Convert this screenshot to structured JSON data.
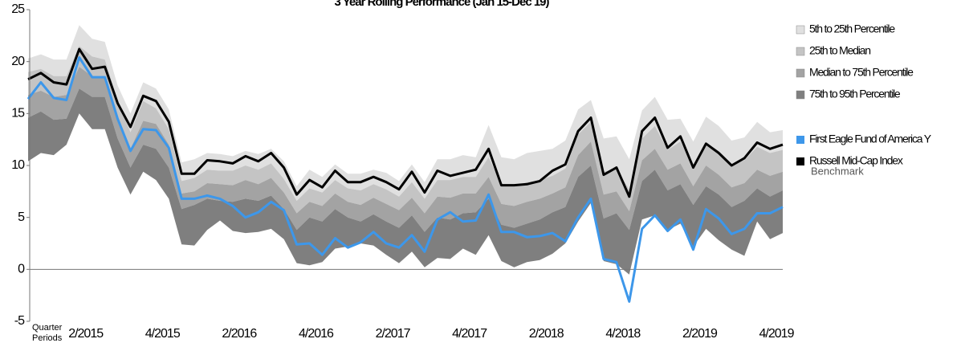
{
  "chart_data": {
    "type": "percentile_band",
    "title": "3 Year Rolling Performance (Jan 15-Dec 19)",
    "x_axis_label": [
      "Quarter",
      "Periods"
    ],
    "categories": [
      null,
      null,
      null,
      null,
      null,
      "2/2015",
      null,
      null,
      null,
      null,
      null,
      "4/2015",
      null,
      null,
      null,
      null,
      null,
      "2/2016",
      null,
      null,
      null,
      null,
      null,
      "4/2016",
      null,
      null,
      null,
      null,
      null,
      "2/2017",
      null,
      null,
      null,
      null,
      null,
      "4/2017",
      null,
      null,
      null,
      null,
      null,
      "2/2018",
      null,
      null,
      null,
      null,
      null,
      "4/2018",
      null,
      null,
      null,
      null,
      null,
      "2/2019",
      null,
      null,
      null,
      null,
      null,
      "4/2019"
    ],
    "ylim": [
      -5,
      25
    ],
    "yticks": [
      -5,
      0,
      5,
      10,
      15,
      20,
      25
    ],
    "bands": [
      {
        "name": "5th to 25th Percentile",
        "color": "#e0e0e0",
        "values": [
          20.3,
          20.7,
          20.2,
          20.2,
          23.5,
          22.2,
          21.9,
          17.7,
          15.0,
          18.0,
          17.4,
          15.4,
          10.3,
          10.6,
          11.2,
          11.1,
          10.9,
          11.4,
          11.1,
          11.6,
          10.4,
          8.0,
          9.6,
          8.9,
          10.1,
          9.2,
          9.2,
          9.6,
          9.3,
          8.5,
          10.1,
          8.4,
          10.6,
          10.6,
          11.0,
          10.8,
          13.9,
          10.8,
          10.6,
          11.2,
          11.4,
          11.6,
          12.4,
          15.4,
          16.3,
          12.6,
          12.8,
          10.6,
          15.3,
          16.6,
          14.4,
          14.5,
          12.3,
          14.7,
          13.8,
          12.4,
          12.7,
          14.2,
          13.2,
          13.4
        ]
      },
      {
        "name": "25th to Median",
        "color": "#c4c4c4",
        "values": [
          19.0,
          19.3,
          18.6,
          18.6,
          21.5,
          20.5,
          20.2,
          16.3,
          13.2,
          16.2,
          15.5,
          13.5,
          8.5,
          8.8,
          9.6,
          9.5,
          9.5,
          10.0,
          9.6,
          10.2,
          8.7,
          6.6,
          7.8,
          7.4,
          8.6,
          7.8,
          7.6,
          8.2,
          7.7,
          7.0,
          8.4,
          6.8,
          8.6,
          8.6,
          8.9,
          8.9,
          10.8,
          8.2,
          8.0,
          8.4,
          8.6,
          9.0,
          9.7,
          13.0,
          14.2,
          9.4,
          9.7,
          7.7,
          12.6,
          13.8,
          11.5,
          12.3,
          10.0,
          12.2,
          11.4,
          10.1,
          10.5,
          11.8,
          11.2,
          11.5
        ]
      },
      {
        "name": "Median to 75th Percentile",
        "color": "#a3a3a3",
        "values": [
          16.8,
          17.2,
          16.6,
          16.8,
          19.5,
          18.6,
          18.4,
          14.6,
          11.6,
          14.3,
          14.0,
          12.0,
          7.3,
          7.5,
          8.3,
          8.2,
          8.1,
          8.6,
          8.2,
          8.8,
          7.4,
          5.4,
          6.5,
          6.1,
          7.3,
          6.5,
          6.2,
          6.9,
          6.3,
          5.7,
          6.9,
          5.4,
          7.0,
          6.9,
          7.3,
          7.3,
          8.9,
          6.3,
          6.1,
          6.5,
          6.8,
          7.3,
          7.9,
          11.0,
          12.3,
          7.2,
          7.5,
          5.6,
          10.5,
          11.6,
          9.6,
          10.2,
          8.0,
          10.0,
          9.1,
          7.9,
          8.3,
          9.6,
          9.0,
          9.4
        ]
      },
      {
        "name": "75th to 95th Percentile",
        "color": "#7f7f7f",
        "values": [
          14.6,
          15.2,
          14.4,
          14.5,
          17.4,
          16.6,
          16.6,
          12.6,
          9.8,
          12.0,
          11.6,
          9.8,
          5.8,
          6.2,
          6.8,
          6.6,
          6.5,
          6.8,
          6.6,
          7.1,
          5.8,
          3.8,
          5.0,
          4.6,
          5.8,
          5.0,
          4.6,
          5.3,
          4.6,
          4.0,
          5.2,
          3.6,
          5.0,
          4.8,
          5.4,
          5.5,
          6.8,
          4.3,
          4.0,
          4.4,
          4.8,
          5.5,
          6.0,
          8.9,
          10.0,
          4.9,
          5.4,
          3.8,
          8.5,
          9.6,
          7.6,
          8.2,
          6.2,
          8.0,
          7.2,
          6.0,
          6.6,
          7.8,
          7.0,
          7.6
        ],
        "low": [
          10.4,
          11.2,
          11.0,
          12.0,
          15.0,
          13.5,
          13.5,
          9.8,
          7.2,
          9.4,
          8.6,
          6.8,
          2.4,
          2.3,
          3.8,
          4.7,
          3.7,
          3.5,
          3.6,
          3.9,
          2.9,
          0.6,
          0.4,
          0.7,
          2.0,
          2.2,
          2.5,
          2.3,
          1.4,
          0.6,
          1.7,
          0.2,
          1.1,
          1.0,
          2.0,
          1.4,
          3.3,
          0.8,
          0.2,
          0.7,
          0.9,
          1.5,
          2.5,
          4.6,
          6.4,
          0.8,
          0.5,
          -0.5,
          4.8,
          5.2,
          3.8,
          4.4,
          2.2,
          3.9,
          2.8,
          1.9,
          1.3,
          4.6,
          2.9,
          3.5
        ]
      }
    ],
    "series": [
      {
        "name": "First Eagle Fund of America Y",
        "color": "#3d97ea",
        "values": [
          16.4,
          18.0,
          16.5,
          16.3,
          20.4,
          18.5,
          18.5,
          14.5,
          11.4,
          13.5,
          13.4,
          11.7,
          6.8,
          6.8,
          7.1,
          6.8,
          6.1,
          5.0,
          5.5,
          6.5,
          5.7,
          2.4,
          2.5,
          1.4,
          3.0,
          2.1,
          2.6,
          3.6,
          2.5,
          2.1,
          3.3,
          1.7,
          4.8,
          5.5,
          4.6,
          4.7,
          7.2,
          3.6,
          3.6,
          3.1,
          3.2,
          3.5,
          2.7,
          5.0,
          6.8,
          1.0,
          0.7,
          -3.1,
          3.9,
          5.2,
          3.7,
          4.8,
          1.9,
          5.8,
          4.9,
          3.4,
          3.9,
          5.4,
          5.4,
          6.0
        ]
      },
      {
        "name": "Russell Mid-Cap Index",
        "subname": "Benchmark",
        "color": "#000000",
        "values": [
          18.3,
          18.9,
          18.0,
          17.8,
          21.2,
          19.3,
          19.5,
          16.0,
          13.7,
          16.7,
          16.2,
          14.2,
          9.2,
          9.2,
          10.5,
          10.4,
          10.2,
          10.9,
          10.4,
          11.2,
          9.8,
          7.2,
          8.6,
          7.9,
          9.5,
          8.4,
          8.4,
          8.9,
          8.4,
          7.7,
          9.4,
          7.4,
          9.5,
          9.0,
          9.3,
          9.6,
          11.6,
          8.1,
          8.1,
          8.2,
          8.5,
          9.5,
          10.1,
          13.3,
          14.6,
          9.1,
          9.8,
          7.0,
          13.3,
          14.6,
          11.7,
          12.8,
          9.8,
          12.1,
          11.2,
          10.0,
          10.7,
          12.2,
          11.6,
          12.0
        ]
      }
    ]
  }
}
